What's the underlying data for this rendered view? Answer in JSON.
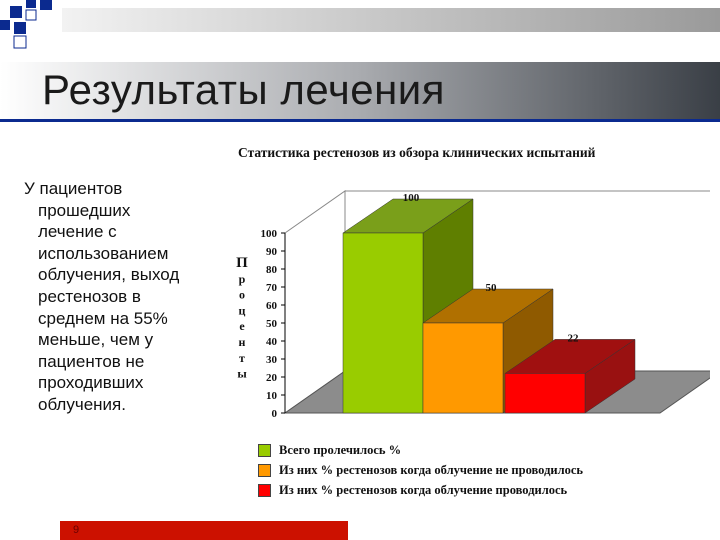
{
  "slide": {
    "title": "Результаты лечения",
    "body_lines": [
      "У пациентов",
      "прошедших",
      "лечение с",
      "использованием",
      "облучения, выход",
      "рестенозов в",
      "среднем на 55%",
      "меньше, чем у",
      "пациентов не",
      "проходивших",
      "облучения."
    ],
    "page_number": "9"
  },
  "colors": {
    "title_band": "#3a3f46",
    "accent_blue": "#0b2a8f",
    "footer": "#cc1100"
  },
  "chart_data": {
    "type": "bar",
    "style": "3d",
    "title": "Статистика рестенозов из обзора клинических испытаний",
    "ylabel": "Проценты",
    "ylim": [
      0,
      100
    ],
    "yticks": [
      0,
      10,
      20,
      30,
      40,
      50,
      60,
      70,
      80,
      90,
      100
    ],
    "series": [
      {
        "name": "Всего пролечилось %",
        "value": 100,
        "label": "100",
        "color": "#99cc00",
        "side": "#5f7f00",
        "top": "#7a9f1a"
      },
      {
        "name": "Из них % рестенозов когда облучение не проводилось",
        "value": 50,
        "label": "50",
        "color": "#ff9900",
        "side": "#8f5a00",
        "top": "#b07000"
      },
      {
        "name": "Из них % рестенозов когда облучение проводилось",
        "value": 22,
        "label": "22",
        "color": "#ff0000",
        "side": "#991111",
        "top": "#a01010"
      }
    ],
    "legend_position": "bottom"
  }
}
